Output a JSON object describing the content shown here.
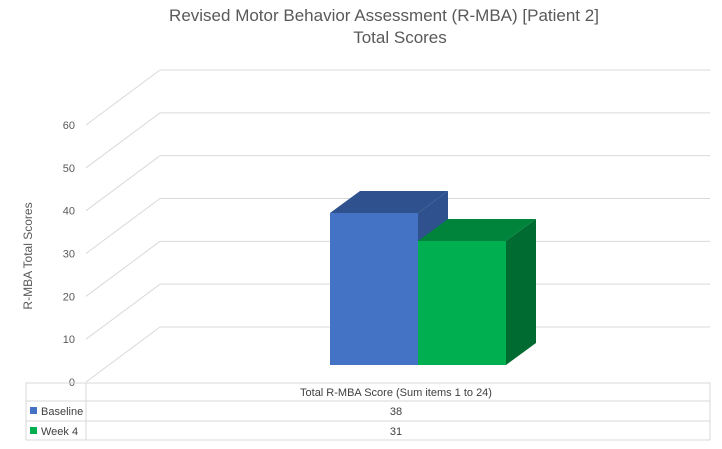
{
  "chart_data": {
    "type": "bar",
    "title": "Revised Motor Behavior Assessment (R-MBA) [Patient 2]",
    "subtitle": "Total Scores",
    "ylabel": "R-MBA Total Scores",
    "xlabel": "",
    "categories": [
      "Total R-MBA Score (Sum items 1 to 24)"
    ],
    "series": [
      {
        "name": "Baseline",
        "values": [
          38
        ],
        "color": "#4472c4",
        "top_color": "#2f528f",
        "side_color": "#2f528f"
      },
      {
        "name": "Week 4",
        "values": [
          31
        ],
        "color": "#00b050",
        "top_color": "#00843c",
        "side_color": "#006b30"
      }
    ],
    "ylim": [
      0,
      60
    ],
    "yticks": [
      0,
      10,
      20,
      30,
      40,
      50,
      60
    ],
    "grid": true,
    "legend": "data-table"
  }
}
